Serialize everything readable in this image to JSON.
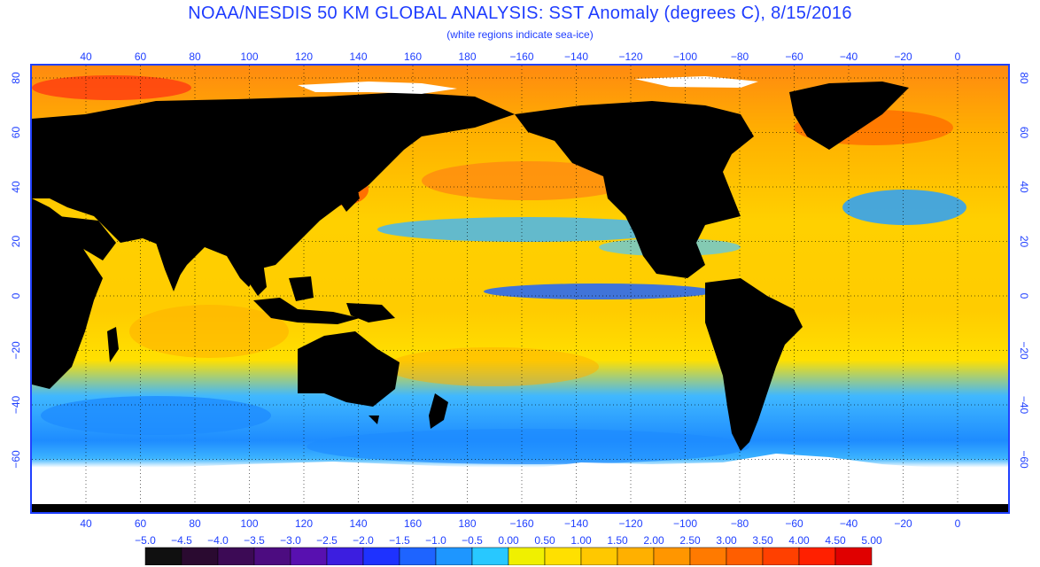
{
  "header": {
    "title": "NOAA/NESDIS 50 KM GLOBAL ANALYSIS: SST Anomaly (degrees C), 8/15/2016",
    "subtitle": "(white regions indicate sea-ice)"
  },
  "map": {
    "lon_labels": [
      "40",
      "60",
      "80",
      "100",
      "120",
      "140",
      "160",
      "180",
      "−160",
      "−140",
      "−120",
      "−100",
      "−80",
      "−60",
      "−40",
      "−20",
      "0"
    ],
    "lat_labels": [
      "80",
      "60",
      "40",
      "20",
      "0",
      "−20",
      "−40",
      "−60"
    ],
    "colors": {
      "land": "#000000",
      "ice": "#ffffff",
      "frame": "#2040ff",
      "grid": "#000000",
      "cold": "#28a0ff",
      "neutral": "#ffd000",
      "warm": "#ff9a10",
      "hot": "#ff4010"
    }
  },
  "colorbar": {
    "labels": [
      "−5.0",
      "−4.5",
      "−4.0",
      "−3.5",
      "−3.0",
      "−2.5",
      "−2.0",
      "−1.5",
      "−1.0",
      "−0.5",
      "0.00",
      "0.50",
      "1.00",
      "1.50",
      "2.00",
      "2.50",
      "3.00",
      "3.50",
      "4.00",
      "4.50",
      "5.00"
    ],
    "colors": [
      "#101010",
      "#2a0a30",
      "#3c0a55",
      "#4c0c80",
      "#5810b0",
      "#3c1ee0",
      "#1e32ff",
      "#1e64ff",
      "#1e96ff",
      "#28c8ff",
      "#f0f000",
      "#ffe000",
      "#ffc800",
      "#ffb000",
      "#ff9600",
      "#ff7a00",
      "#ff5e00",
      "#ff4000",
      "#ff2000",
      "#e00000"
    ]
  }
}
